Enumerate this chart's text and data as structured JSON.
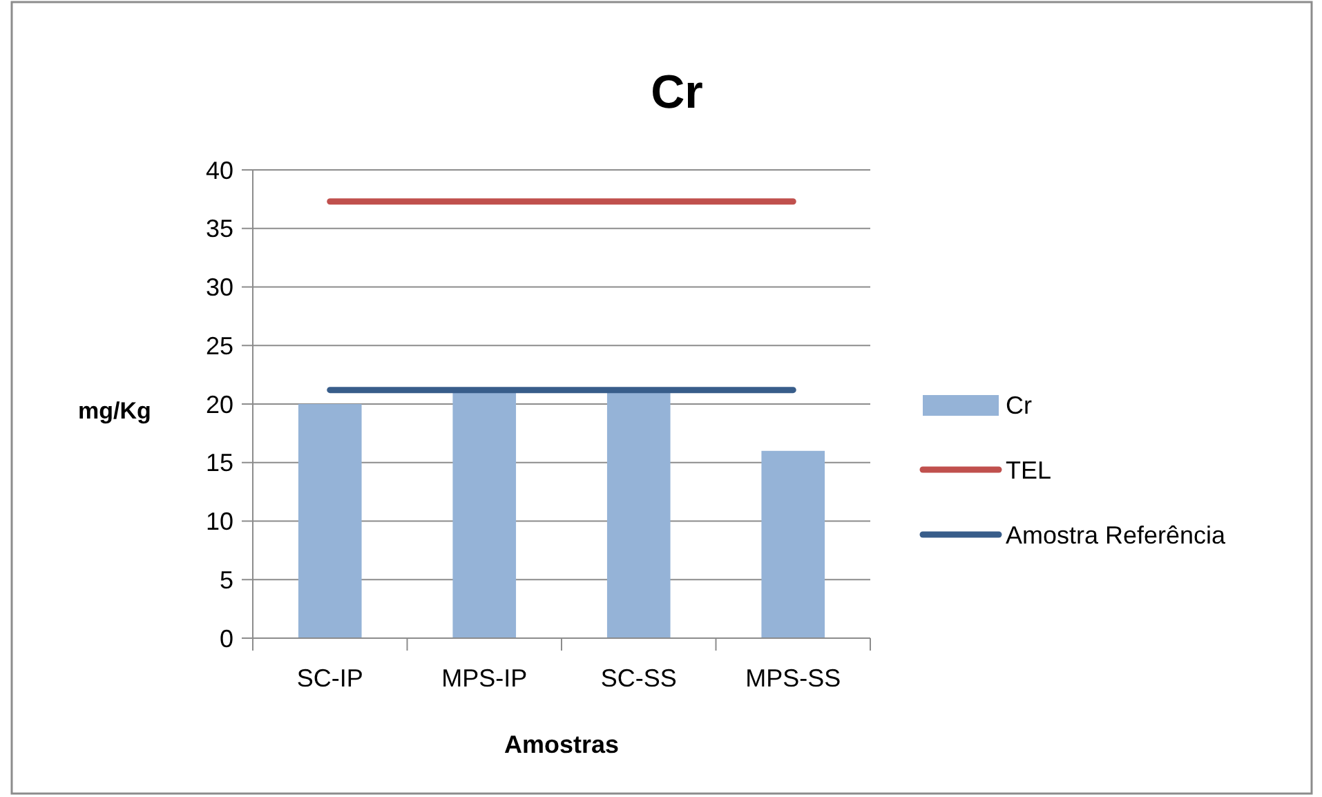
{
  "chart_data": {
    "type": "bar",
    "title": "Cr",
    "xlabel": "Amostras",
    "ylabel": "mg/Kg",
    "categories": [
      "SC-IP",
      "MPS-IP",
      "SC-SS",
      "MPS-SS"
    ],
    "series": [
      {
        "name": "Cr",
        "color": "#95b3d7",
        "values": [
          20,
          21,
          21,
          16
        ]
      },
      {
        "name": "TEL",
        "type": "line",
        "color": "#c0504d",
        "values": [
          37.3,
          37.3,
          37.3,
          37.3
        ]
      },
      {
        "name": "Amostra Referência",
        "type": "line",
        "color": "#385d8a",
        "values": [
          21.2,
          21.2,
          21.2,
          21.2
        ]
      }
    ],
    "ylim": [
      0,
      40
    ],
    "yticks": [
      0,
      5,
      10,
      15,
      20,
      25,
      30,
      35,
      40
    ],
    "grid": "y",
    "legend": "right",
    "marker": "none"
  }
}
